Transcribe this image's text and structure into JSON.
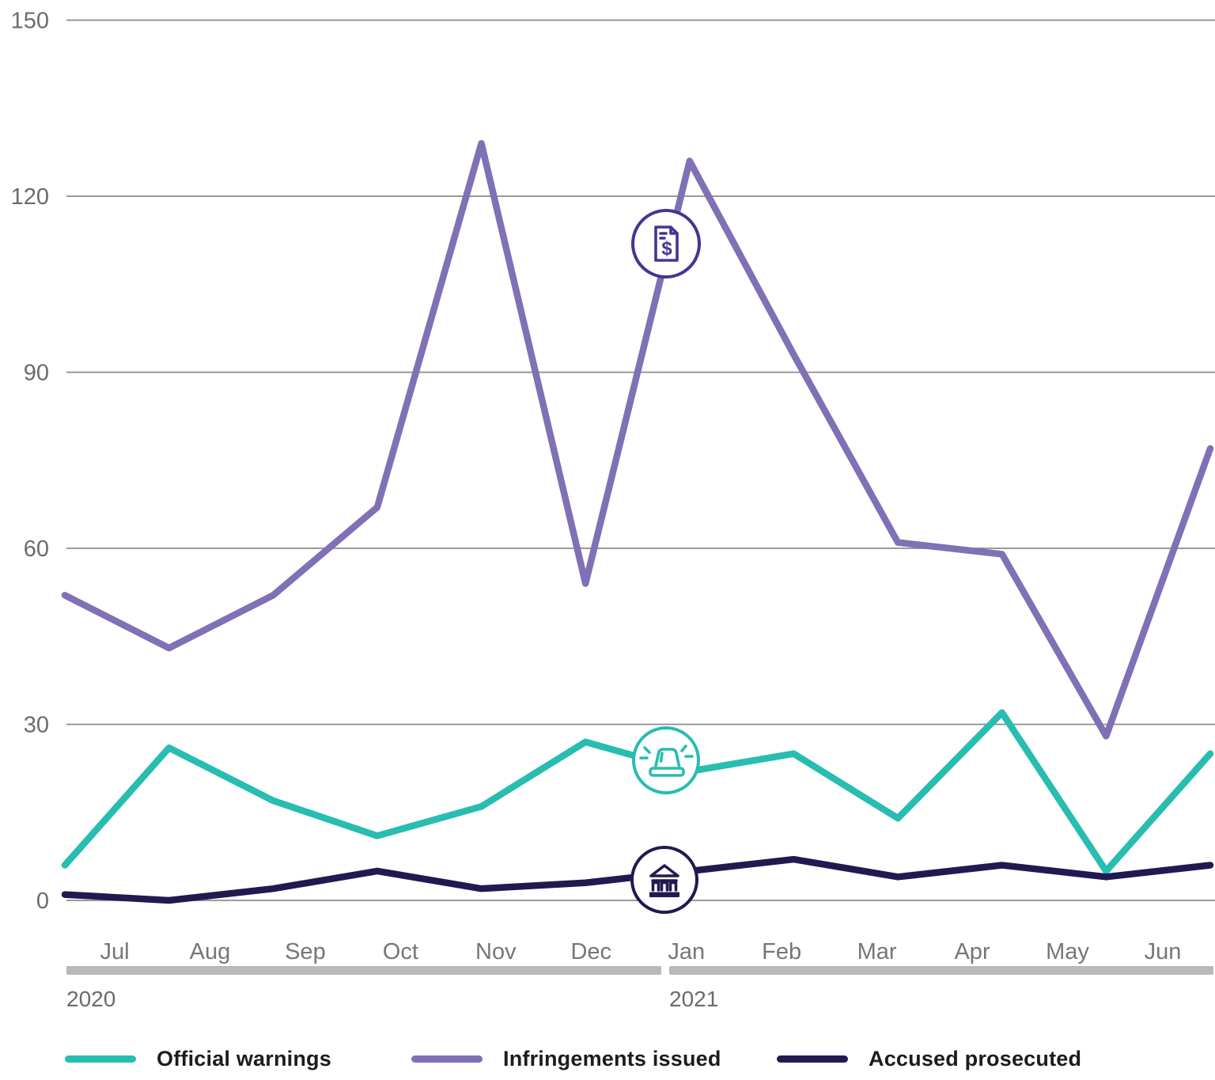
{
  "chart_data": {
    "type": "line",
    "title": "",
    "categories": [
      "Jul",
      "Aug",
      "Sep",
      "Oct",
      "Nov",
      "Dec",
      "Jan",
      "Feb",
      "Mar",
      "Apr",
      "May",
      "Jun"
    ],
    "category_groups": [
      {
        "label": "2020",
        "from": 0,
        "to": 5
      },
      {
        "label": "2021",
        "from": 6,
        "to": 11
      }
    ],
    "ylim": [
      0,
      150
    ],
    "y_ticks": [
      0,
      30,
      60,
      90,
      120,
      150
    ],
    "grid": "horizontal",
    "legend_position": "bottom",
    "series": [
      {
        "name": "Official warnings",
        "color": "#27bdb0",
        "icon": "siren-icon",
        "icon_color": "#27bdb0",
        "values": [
          6,
          26,
          17,
          11,
          16,
          27,
          22,
          25,
          14,
          32,
          5,
          25
        ]
      },
      {
        "name": "Infringements issued",
        "color": "#8070b5",
        "icon": "invoice-dollar-icon",
        "icon_color": "#443594",
        "values": [
          52,
          43,
          52,
          67,
          129,
          54,
          126,
          93,
          61,
          59,
          28,
          77
        ]
      },
      {
        "name": "Accused prosecuted",
        "color": "#211a50",
        "icon": "bank-icon",
        "icon_color": "#211a50",
        "values": [
          1,
          0,
          2,
          5,
          2,
          3,
          5,
          7,
          4,
          6,
          4,
          6
        ]
      }
    ]
  }
}
